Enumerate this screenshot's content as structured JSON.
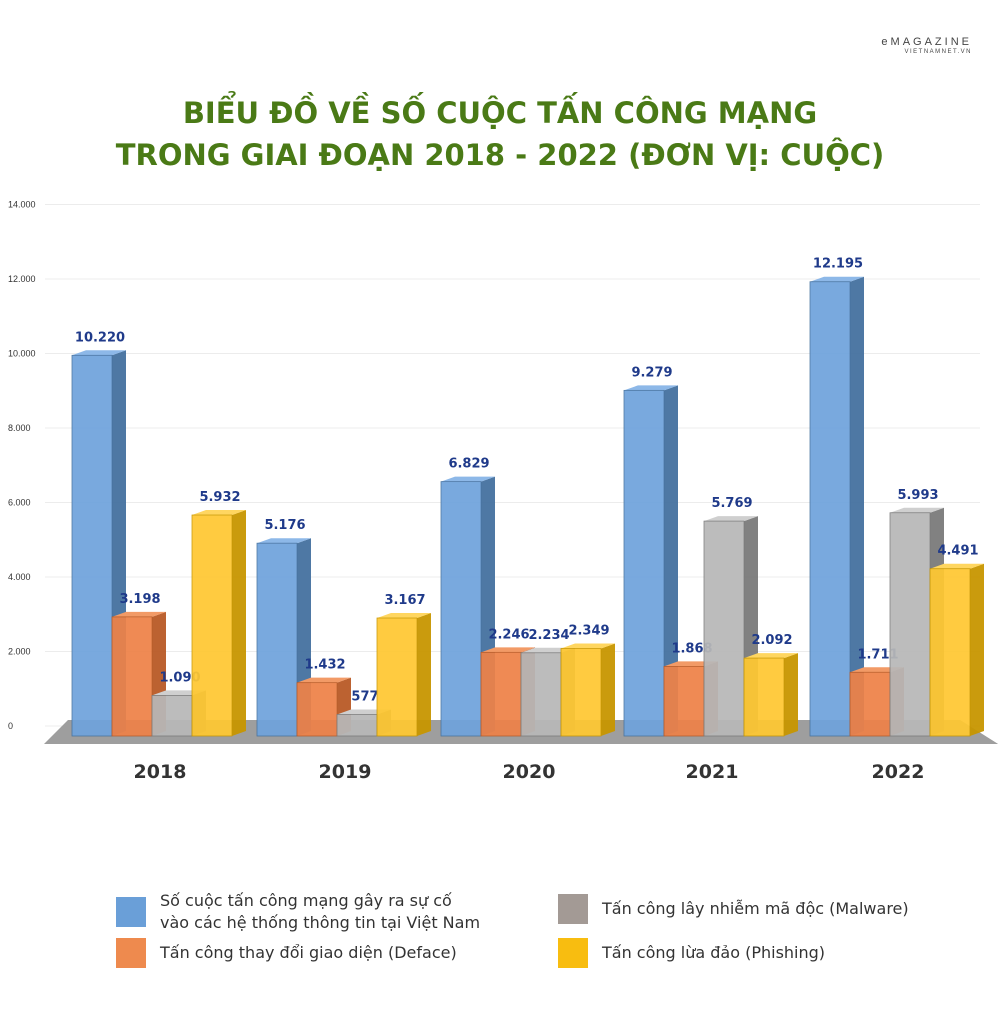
{
  "brand": {
    "name": "eMAGAZINE",
    "sub": "VIETNAMNET.VN"
  },
  "title_lines": [
    "BIỂU ĐỒ VỀ SỐ CUỘC TẤN CÔNG MẠNG",
    "TRONG GIAI ĐOẠN 2018 - 2022 (ĐƠN VỊ: CUỘC)"
  ],
  "colors": {
    "title": "#4a7a16",
    "value_label": "#1f3a8a",
    "blue": "#5b9bd5",
    "orange": "#ed7d31",
    "gray": "#a5a5a5",
    "yellow": "#ffc000",
    "floor": "#9a9a9a"
  },
  "legend": [
    {
      "label_line1": "Số cuộc tấn công mạng gây ra sự cố",
      "label_line2": "vào các hệ thống thông tin tại Việt Nam",
      "color": "#6a9fd8"
    },
    {
      "label_line1": "Tấn công lây nhiễm mã độc (Malware)",
      "label_line2": "",
      "color": "#a39a95"
    },
    {
      "label_line1": "Tấn công thay đổi giao diện (Deface)",
      "label_line2": "",
      "color": "#ee8a4e"
    },
    {
      "label_line1": "Tấn công lừa đảo (Phishing)",
      "label_line2": "",
      "color": "#f8bd10"
    }
  ],
  "chart_data": {
    "type": "bar",
    "categories": [
      "2018",
      "2019",
      "2020",
      "2021",
      "2022"
    ],
    "series": [
      {
        "name": "Số cuộc tấn công mạng gây ra sự cố vào các hệ thống thông tin tại Việt Nam",
        "values": [
          10220,
          5176,
          6829,
          9279,
          12195
        ],
        "labels": [
          "10.220",
          "5.176",
          "6.829",
          "9.279",
          "12.195"
        ]
      },
      {
        "name": "Tấn công thay đổi giao diện (Deface)",
        "values": [
          3198,
          1432,
          2246,
          1868,
          1711
        ],
        "labels": [
          "3.198",
          "1.432",
          "2.246",
          "1.868",
          "1.711"
        ]
      },
      {
        "name": "Tấn công lây nhiễm mã độc (Malware)",
        "values": [
          1090,
          577,
          2234,
          5769,
          5993
        ],
        "labels": [
          "1.090",
          "577",
          "2.234",
          "5.769",
          "5.993"
        ]
      },
      {
        "name": "Tấn công lừa đảo (Phishing)",
        "values": [
          5932,
          3167,
          2349,
          2092,
          4491
        ],
        "labels": [
          "5.932",
          "3.167",
          "2.349",
          "2.092",
          "4.491"
        ]
      }
    ],
    "yticks": [
      0,
      2000,
      4000,
      6000,
      8000,
      10000,
      12000,
      14000
    ],
    "ytick_labels": [
      "0",
      "2.000",
      "4.000",
      "6.000",
      "8.000",
      "10.000",
      "12.000",
      "14.000"
    ],
    "ylim": [
      0,
      14000
    ],
    "grid": true,
    "legend_position": "bottom"
  }
}
